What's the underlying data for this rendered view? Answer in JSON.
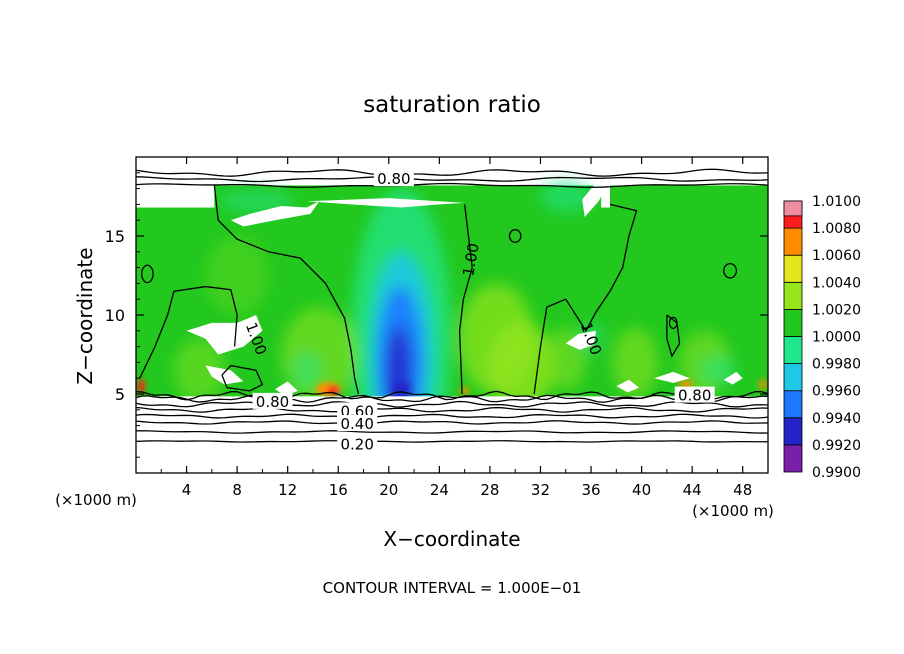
{
  "chart_data": {
    "type": "heatmap",
    "title": "saturation ratio",
    "xlabel": "X−coordinate",
    "ylabel": "Z−coordinate",
    "x_unit": "(×1000 m)",
    "y_unit": "(×1000 m)",
    "xlim": [
      0,
      50
    ],
    "ylim": [
      0,
      20
    ],
    "x_ticks": [
      4,
      8,
      12,
      16,
      20,
      24,
      28,
      32,
      36,
      40,
      44,
      48
    ],
    "y_ticks": [
      5,
      10,
      15
    ],
    "grid": false,
    "colorbar": {
      "placement": "right",
      "min": 0.99,
      "max": 1.01,
      "levels": [
        "0.9900",
        "0.9920",
        "0.9940",
        "0.9960",
        "0.9980",
        "1.0000",
        "1.0020",
        "1.0040",
        "1.0060",
        "1.0080",
        "1.0100"
      ],
      "colors": [
        "#7a1fa8",
        "#2323c8",
        "#1e78ff",
        "#1ec8e6",
        "#22e68c",
        "#22c81e",
        "#96e61e",
        "#e6e61e",
        "#ff8c00",
        "#ff1e1e",
        "#f08ca0"
      ]
    },
    "contour_labels": [
      {
        "text": "0.80",
        "x": 20.4,
        "z": 18.6
      },
      {
        "text": "1.00",
        "x": 26.5,
        "z": 13.5
      },
      {
        "text": "1.00",
        "x": 9.5,
        "z": 8.5
      },
      {
        "text": "1.00",
        "x": 36.0,
        "z": 8.5
      },
      {
        "text": "0.80",
        "x": 10.8,
        "z": 4.5
      },
      {
        "text": "0.80",
        "x": 44.2,
        "z": 4.9
      },
      {
        "text": "0.60",
        "x": 17.5,
        "z": 3.9
      },
      {
        "text": "0.40",
        "x": 17.5,
        "z": 3.1
      },
      {
        "text": "0.20",
        "x": 17.5,
        "z": 1.8
      }
    ],
    "annotation": "CONTOUR INTERVAL = 1.000E−01"
  }
}
